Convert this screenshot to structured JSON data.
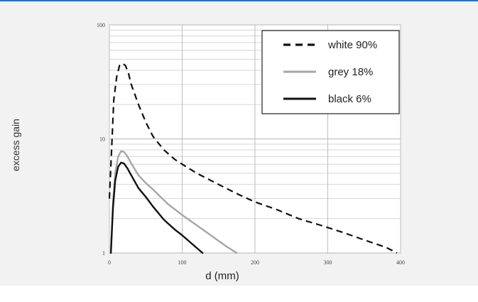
{
  "chart_data": {
    "type": "line",
    "title": "",
    "xlabel": "d (mm)",
    "ylabel": "excess gain",
    "xlim": [
      0,
      400
    ],
    "ylim": [
      1,
      100
    ],
    "yscale": "log",
    "xticks": [
      "0",
      "100",
      "200",
      "300",
      "400"
    ],
    "yticks": [
      "1",
      "10",
      "100"
    ],
    "grid": true,
    "legend_position": "top-right",
    "series": [
      {
        "name": "white 90%",
        "style": "dashed",
        "color": "#111111",
        "x": [
          0,
          3,
          6,
          10,
          14,
          18,
          22,
          26,
          30,
          40,
          50,
          60,
          75,
          90,
          100,
          120,
          140,
          160,
          180,
          200,
          230,
          260,
          290,
          320,
          350,
          380,
          395
        ],
        "y": [
          3.0,
          8,
          22,
          35,
          44,
          46,
          44,
          38,
          30,
          20,
          14,
          10.5,
          8.0,
          6.6,
          6.0,
          5.0,
          4.3,
          3.7,
          3.2,
          2.8,
          2.4,
          2.0,
          1.75,
          1.52,
          1.3,
          1.12,
          1.0
        ]
      },
      {
        "name": "grey 18%",
        "style": "solid",
        "color": "#a6a6a6",
        "x": [
          2,
          5,
          8,
          12,
          16,
          20,
          25,
          30,
          40,
          50,
          60,
          80,
          100,
          120,
          140,
          160,
          175
        ],
        "y": [
          1.0,
          2.8,
          5.0,
          7.0,
          7.8,
          7.7,
          7.0,
          6.1,
          4.8,
          4.1,
          3.6,
          2.7,
          2.15,
          1.75,
          1.42,
          1.15,
          1.0
        ]
      },
      {
        "name": "black 6%",
        "style": "solid",
        "color": "#111111",
        "x": [
          2,
          5,
          8,
          12,
          16,
          20,
          25,
          30,
          40,
          50,
          60,
          75,
          90,
          100,
          115,
          128
        ],
        "y": [
          1.0,
          2.5,
          4.3,
          5.7,
          6.2,
          6.1,
          5.5,
          4.8,
          3.7,
          3.1,
          2.55,
          1.95,
          1.6,
          1.43,
          1.18,
          1.0
        ]
      }
    ]
  }
}
